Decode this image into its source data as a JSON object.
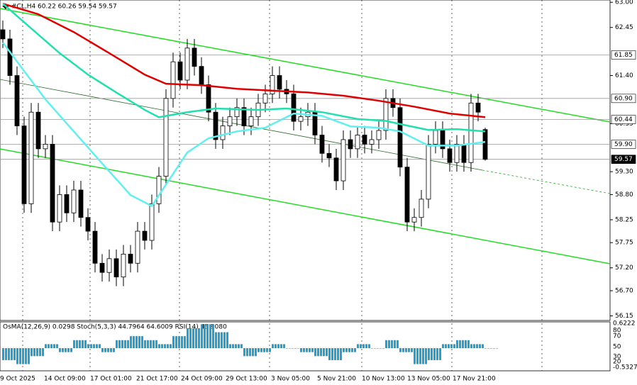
{
  "chart_data": {
    "type": "candlestick",
    "header": "#CL,H4  60.22 60.26 59.54 59.57",
    "indicator_header": "OsMA(12,26,9) 0.0298  Stoch(5,3,3) 44.7964 64.6009  RSI(14) 45.9080",
    "ylim": [
      56.05,
      63.05
    ],
    "yticks": [
      {
        "value": 63.0,
        "label": "63.00"
      },
      {
        "value": 62.45,
        "label": "62.45"
      },
      {
        "value": 61.4,
        "label": "61.40"
      },
      {
        "value": 60.35,
        "label": "60.35"
      },
      {
        "value": 59.3,
        "label": "59.30"
      },
      {
        "value": 58.8,
        "label": "58.80"
      },
      {
        "value": 58.25,
        "label": "58.25"
      },
      {
        "value": 57.75,
        "label": "57.75"
      },
      {
        "value": 57.2,
        "label": "57.20"
      },
      {
        "value": 56.7,
        "label": "56.70"
      },
      {
        "value": 56.15,
        "label": "56.15"
      }
    ],
    "levels": [
      {
        "value": 61.85,
        "label": "61.85"
      },
      {
        "value": 60.9,
        "label": "60.90"
      },
      {
        "value": 60.44,
        "label": "60.44"
      },
      {
        "value": 59.9,
        "label": "59.90"
      },
      {
        "value": 59.57,
        "label": "59.57"
      }
    ],
    "time_labels": [
      "9 Oct 2025",
      "14 Oct 09:00",
      "17 Oct 01:00",
      "21 Oct 17:00",
      "24 Oct 09:00",
      "29 Oct 13:00",
      "3 Nov 05:00",
      "5 Nov 21:00",
      "10 Nov 13:00",
      "13 Nov 05:00",
      "17 Nov 21:00"
    ],
    "open": [
      62.4,
      62.2,
      61.4,
      60.3,
      58.6,
      60.6,
      59.8,
      59.9,
      58.2,
      58.8,
      58.4,
      58.9,
      58.3,
      58.0,
      57.3,
      57.1,
      57.4,
      57.0,
      57.5,
      57.3,
      58.0,
      57.8,
      58.6,
      59.2,
      60.9,
      61.7,
      61.3,
      62.0,
      61.6,
      61.2,
      60.6,
      60.0,
      60.3,
      60.5,
      60.7,
      60.3,
      60.5,
      60.8,
      61.0,
      61.4,
      61.1,
      61.0,
      60.4,
      60.5,
      60.6,
      60.1,
      59.7,
      59.6,
      59.1,
      60.0,
      59.8,
      60.1,
      59.9,
      60.0,
      60.2,
      60.9,
      60.7,
      59.4,
      58.2,
      58.3,
      58.7,
      59.9,
      60.2,
      59.8,
      59.5,
      59.9,
      59.5,
      60.8,
      60.22
    ],
    "high": [
      62.6,
      62.4,
      61.6,
      60.5,
      60.8,
      60.8,
      60.1,
      60.1,
      59.0,
      59.0,
      59.1,
      59.1,
      58.5,
      58.2,
      57.5,
      57.6,
      57.6,
      57.7,
      57.7,
      58.2,
      58.2,
      58.8,
      59.4,
      61.1,
      61.9,
      61.9,
      62.2,
      62.2,
      61.8,
      61.4,
      60.8,
      60.5,
      60.7,
      60.9,
      60.9,
      60.7,
      61.0,
      61.2,
      61.6,
      61.6,
      61.3,
      61.2,
      60.7,
      60.8,
      60.8,
      60.3,
      59.9,
      59.8,
      60.2,
      60.2,
      60.3,
      60.3,
      60.2,
      60.4,
      61.1,
      61.1,
      60.9,
      59.6,
      58.5,
      58.9,
      60.1,
      60.4,
      60.4,
      60.0,
      60.1,
      60.1,
      61.0,
      61.0,
      60.26
    ],
    "low": [
      62.0,
      61.2,
      60.1,
      58.4,
      58.4,
      59.6,
      59.6,
      58.0,
      58.0,
      58.2,
      58.2,
      58.1,
      57.8,
      57.1,
      56.9,
      56.9,
      56.8,
      56.8,
      57.1,
      57.1,
      57.6,
      57.6,
      58.4,
      59.0,
      60.7,
      61.1,
      61.1,
      61.4,
      61.0,
      60.4,
      59.8,
      59.8,
      60.1,
      60.3,
      60.1,
      60.1,
      60.3,
      60.6,
      60.8,
      60.9,
      60.8,
      60.2,
      60.2,
      60.3,
      59.9,
      59.5,
      59.4,
      58.9,
      58.9,
      59.6,
      59.6,
      59.7,
      59.7,
      59.8,
      60.0,
      60.5,
      59.2,
      58.0,
      58.0,
      58.1,
      58.5,
      59.7,
      59.6,
      59.3,
      59.3,
      59.3,
      59.3,
      60.4,
      59.54
    ],
    "close": [
      62.2,
      61.4,
      60.3,
      58.6,
      60.6,
      59.8,
      59.9,
      58.2,
      58.8,
      58.4,
      58.9,
      58.3,
      58.0,
      57.3,
      57.1,
      57.4,
      57.0,
      57.5,
      57.3,
      58.0,
      57.8,
      58.6,
      59.2,
      60.9,
      61.7,
      61.3,
      62.0,
      61.6,
      61.2,
      60.6,
      60.0,
      60.3,
      60.5,
      60.7,
      60.3,
      60.5,
      60.8,
      61.0,
      61.4,
      61.1,
      61.0,
      60.4,
      60.5,
      60.6,
      60.1,
      59.7,
      59.6,
      59.1,
      60.0,
      59.8,
      60.1,
      59.9,
      60.0,
      60.2,
      60.9,
      60.7,
      59.4,
      58.2,
      58.3,
      58.7,
      59.9,
      60.2,
      59.8,
      59.5,
      59.9,
      59.5,
      60.8,
      60.6,
      59.57
    ],
    "series": [
      {
        "color": "#e00000",
        "x": [
          0,
          5,
          10,
          15,
          20,
          23,
          28,
          33,
          38,
          43,
          48,
          53,
          58,
          63,
          68
        ],
        "values": [
          62.97,
          62.74,
          62.35,
          61.89,
          61.42,
          61.22,
          61.19,
          61.11,
          61.07,
          61.03,
          60.96,
          60.85,
          60.72,
          60.57,
          60.49
        ]
      },
      {
        "color": "#20e0b0",
        "x": [
          0,
          4,
          8,
          12,
          16,
          20,
          22,
          26,
          30,
          36,
          40,
          45,
          50,
          54,
          56,
          60,
          64,
          68
        ],
        "values": [
          62.97,
          62.43,
          61.89,
          61.42,
          61.03,
          60.65,
          60.49,
          60.6,
          60.68,
          60.65,
          60.68,
          60.6,
          60.45,
          60.41,
          60.34,
          60.21,
          60.23,
          60.18
        ]
      },
      {
        "color": "#60f0f0",
        "x": [
          0,
          3,
          6,
          10,
          14,
          18,
          21,
          23,
          26,
          29,
          33,
          37,
          41,
          45,
          49,
          53,
          56,
          60,
          64,
          68
        ],
        "values": [
          62.12,
          61.5,
          60.88,
          60.18,
          59.48,
          58.79,
          58.55,
          59.02,
          59.72,
          60.03,
          60.18,
          60.26,
          60.57,
          60.52,
          60.29,
          60.26,
          60.18,
          59.87,
          59.87,
          59.95
        ]
      }
    ],
    "osma": {
      "color": "#1fa0d8",
      "ylim": [
        -0.5327,
        0.6222
      ],
      "values": [
        -0.3,
        -0.4,
        -0.2,
        0.1,
        -0.1,
        0.2,
        0.1,
        -0.1,
        0.2,
        0.3,
        0.2,
        0.1,
        0.3,
        0.5,
        0.6,
        0.4,
        0.1,
        -0.2,
        -0.1,
        0.1,
        0.0,
        -0.1,
        -0.2,
        -0.3,
        -0.1,
        0.1,
        0.0,
        0.2,
        -0.1,
        -0.4,
        -0.3,
        0.1,
        0.2,
        0.1,
        0.0
      ]
    },
    "indicator_axis_labels": [
      "0.6222",
      "80",
      "70",
      "50",
      "30",
      "20",
      "-0.5327"
    ]
  }
}
